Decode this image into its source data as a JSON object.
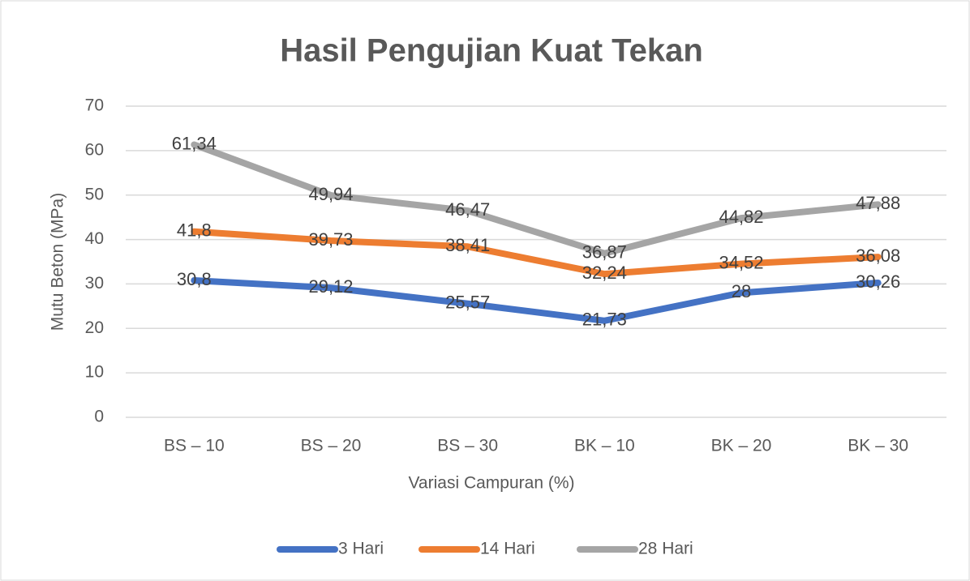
{
  "chart_data": {
    "type": "line",
    "title": "Hasil Pengujian Kuat Tekan",
    "x_label": "Variasi Campuran (%)",
    "y_label": "Mutu Beton (MPa)",
    "categories": [
      "BS – 10",
      "BS – 20",
      "BS – 30",
      "BK – 10",
      "BK – 20",
      "BK – 30"
    ],
    "series": [
      {
        "name": "3 Hari",
        "color": "#4472c4",
        "values": [
          30.8,
          29.12,
          25.57,
          21.73,
          28,
          30.26
        ],
        "value_labels": [
          "30,8",
          "29,12",
          "25,57",
          "21,73",
          "28",
          "30,26"
        ]
      },
      {
        "name": "14 Hari",
        "color": "#ed7d31",
        "values": [
          41.8,
          39.73,
          38.41,
          32.24,
          34.52,
          36.08
        ],
        "value_labels": [
          "41,8",
          "39,73",
          "38,41",
          "32,24",
          "34,52",
          "36,08"
        ]
      },
      {
        "name": "28 Hari",
        "color": "#a5a5a5",
        "values": [
          61.34,
          49.94,
          46.47,
          36.87,
          44.82,
          47.88
        ],
        "value_labels": [
          "61,34",
          "49,94",
          "46,47",
          "36,87",
          "44,82",
          "47,88"
        ]
      }
    ],
    "ylim": [
      0,
      70
    ],
    "yticks": [
      0,
      10,
      20,
      30,
      40,
      50,
      60,
      70
    ],
    "grid": true,
    "legend": "bottom"
  }
}
